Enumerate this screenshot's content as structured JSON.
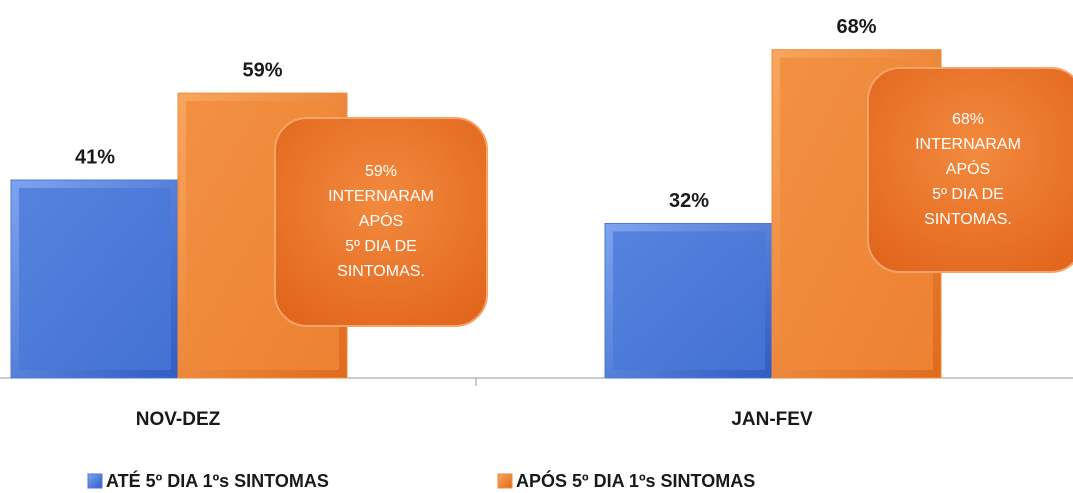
{
  "chart_data": {
    "type": "bar",
    "categories": [
      "NOV-DEZ",
      "JAN-FEV"
    ],
    "series": [
      {
        "name": "ATÉ 5º DIA 1ºs SINTOMAS",
        "color": "#4a78d8",
        "values": [
          41,
          32
        ],
        "value_labels": [
          "41%",
          "32%"
        ]
      },
      {
        "name": "APÓS 5º DIA 1ºs SINTOMAS",
        "color": "#f08a3a",
        "values": [
          59,
          68
        ],
        "value_labels": [
          "59%",
          "68%"
        ]
      }
    ],
    "ylim": [
      0,
      70
    ],
    "annotations": [
      {
        "lines": [
          "59%",
          "INTERNARAM",
          "APÓS",
          "5º DIA DE",
          "SINTOMAS."
        ]
      },
      {
        "lines": [
          "68%",
          "INTERNARAM",
          "APÓS",
          "5º DIA DE",
          "SINTOMAS."
        ]
      }
    ],
    "legend": "bottom"
  }
}
